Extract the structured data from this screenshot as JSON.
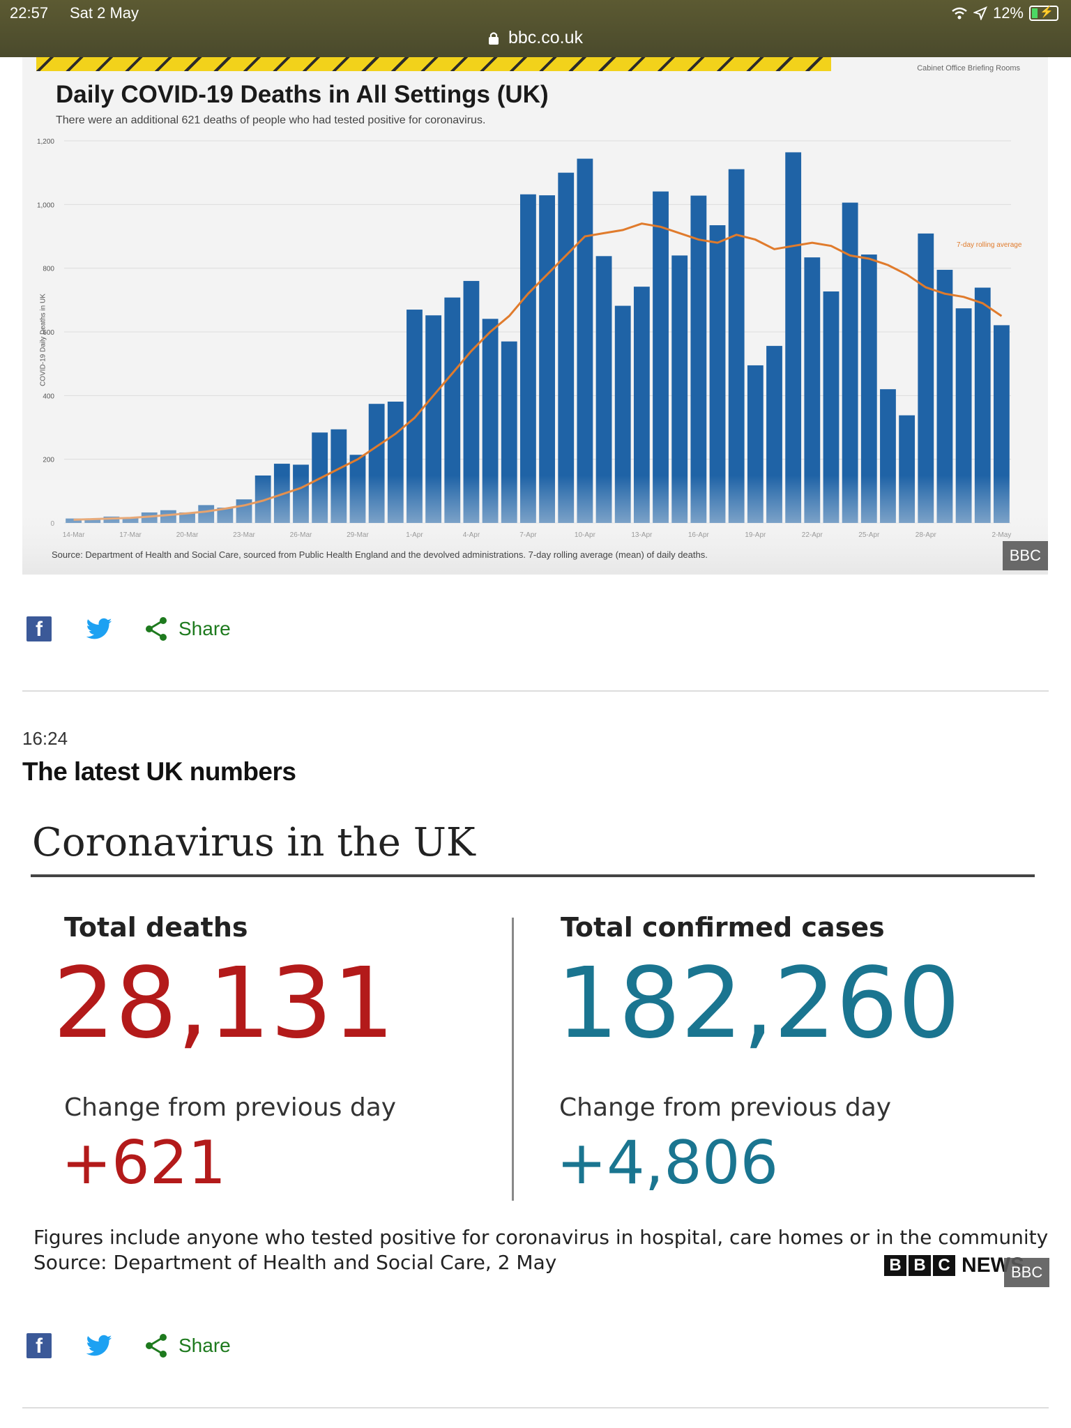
{
  "statusbar": {
    "time": "22:57",
    "date": "Sat 2 May",
    "battery": "12%",
    "url": "bbc.co.uk"
  },
  "chart_image": {
    "cabinet_label": "Cabinet Office Briefing Rooms",
    "badge": "BBC",
    "source": "Source: Department of Health and Social Care, sourced from Public Health England and the devolved administrations. 7-day rolling average (mean) of daily deaths."
  },
  "chart_data": {
    "type": "bar",
    "title": "Daily COVID-19 Deaths in All Settings (UK)",
    "subtitle": "There were an additional 621 deaths of people who had tested positive for coronavirus.",
    "ylabel": "COVID-19 Daily Deaths in UK",
    "ylim": [
      0,
      1200
    ],
    "yticks": [
      "0",
      "200",
      "400",
      "600",
      "800",
      "1,000",
      "1,200"
    ],
    "xtick_labels": [
      "14-Mar",
      "17-Mar",
      "20-Mar",
      "23-Mar",
      "26-Mar",
      "29-Mar",
      "1-Apr",
      "4-Apr",
      "7-Apr",
      "10-Apr",
      "13-Apr",
      "16-Apr",
      "19-Apr",
      "22-Apr",
      "25-Apr",
      "28-Apr",
      "2-May"
    ],
    "categories": [
      "14-Mar",
      "15-Mar",
      "16-Mar",
      "17-Mar",
      "18-Mar",
      "19-Mar",
      "20-Mar",
      "21-Mar",
      "22-Mar",
      "23-Mar",
      "24-Mar",
      "25-Mar",
      "26-Mar",
      "27-Mar",
      "28-Mar",
      "29-Mar",
      "30-Mar",
      "31-Mar",
      "1-Apr",
      "2-Apr",
      "3-Apr",
      "4-Apr",
      "5-Apr",
      "6-Apr",
      "7-Apr",
      "8-Apr",
      "9-Apr",
      "10-Apr",
      "11-Apr",
      "12-Apr",
      "13-Apr",
      "14-Apr",
      "15-Apr",
      "16-Apr",
      "17-Apr",
      "18-Apr",
      "19-Apr",
      "20-Apr",
      "21-Apr",
      "22-Apr",
      "23-Apr",
      "24-Apr",
      "25-Apr",
      "26-Apr",
      "27-Apr",
      "28-Apr",
      "29-Apr",
      "30-Apr",
      "1-May",
      "2-May"
    ],
    "series": [
      {
        "name": "",
        "values": [
          14,
          12,
          20,
          16,
          33,
          40,
          33,
          56,
          48,
          74,
          149,
          186,
          183,
          284,
          294,
          214,
          374,
          381,
          670,
          652,
          708,
          760,
          641,
          570,
          1032,
          1029,
          1100,
          1144,
          838,
          682,
          742,
          1041,
          840,
          1028,
          935,
          1111,
          495,
          556,
          1164,
          834,
          727,
          1006,
          843,
          420,
          338,
          909,
          795,
          674,
          739,
          621
        ]
      },
      {
        "name": "7-day rolling average",
        "values": [
          10,
          12,
          14,
          16,
          20,
          25,
          30,
          36,
          45,
          55,
          70,
          90,
          110,
          140,
          170,
          200,
          240,
          280,
          330,
          400,
          470,
          540,
          600,
          650,
          720,
          780,
          840,
          900,
          910,
          920,
          940,
          930,
          910,
          890,
          880,
          905,
          890,
          860,
          870,
          880,
          870,
          840,
          830,
          810,
          780,
          740,
          720,
          710,
          690,
          650
        ]
      }
    ],
    "legend": "7-day rolling average",
    "legend_position": "right"
  },
  "share1": {
    "label": "Share"
  },
  "post": {
    "time": "16:24",
    "title": "The latest UK numbers"
  },
  "graphic": {
    "heading": "Coronavirus in the UK",
    "deaths_label": "Total deaths",
    "deaths_value": "28,131",
    "deaths_change_label": "Change from previous day",
    "deaths_change": "+621",
    "cases_label": "Total confirmed cases",
    "cases_value": "182,260",
    "cases_change_label": "Change from previous day",
    "cases_change": "+4,806",
    "footnote1": "Figures include anyone who tested positive for coronavirus in hospital, care homes or in the community",
    "footnote2": "Source: Department of Health and Social Care, 2 May",
    "brand_blocks": [
      "B",
      "B",
      "C"
    ],
    "brand_news": "NEWS",
    "badge": "BBC"
  },
  "share2": {
    "label": "Share"
  },
  "colors": {
    "bar": "#1f63a6",
    "line": "#e07b2c",
    "deaths": "#b31a1a",
    "cases": "#1a7590",
    "share": "#1e7a1e",
    "facebook": "#3b5998",
    "twitter": "#1da1f2"
  }
}
